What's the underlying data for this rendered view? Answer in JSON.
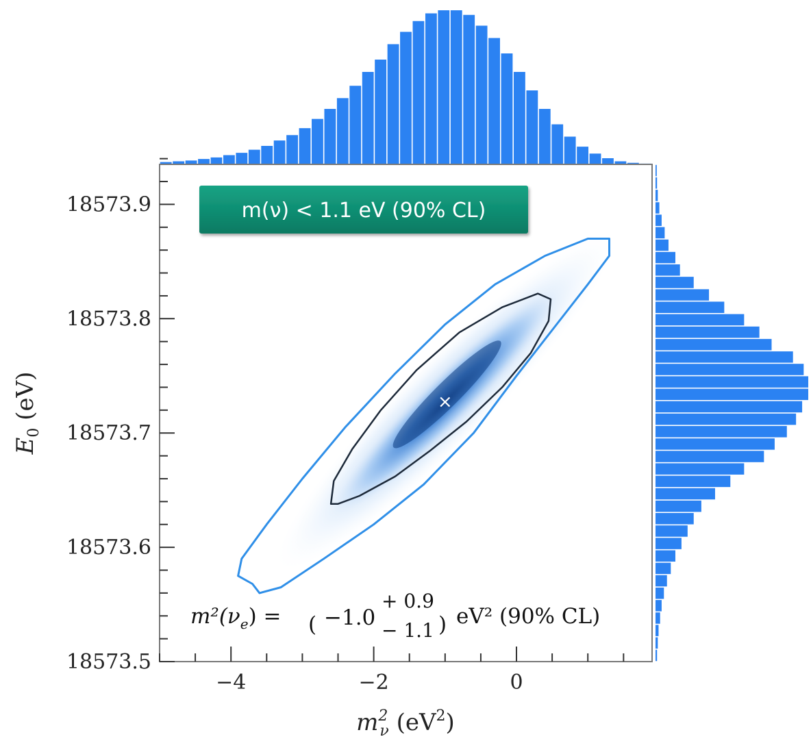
{
  "chart_data": {
    "type": "scatter",
    "subtype": "2d-histogram-with-marginals",
    "title": "",
    "xlabel": "m",
    "xlabel_sup": "2",
    "xlabel_sub": "ν",
    "xlabel_unit_open": " (eV",
    "xlabel_unit_sup": "2",
    "xlabel_unit_close": ")",
    "ylabel": "E",
    "ylabel_sub": "0",
    "ylabel_unit": " (eV)",
    "xlim": [
      -5.0,
      1.9
    ],
    "ylim": [
      18573.5,
      18573.935
    ],
    "x_ticks": [
      -4,
      -2,
      0
    ],
    "x_tick_labels": [
      "−4",
      "−2",
      "0"
    ],
    "x_minor_step": 0.5,
    "y_ticks": [
      18573.5,
      18573.6,
      18573.7,
      18573.8,
      18573.9
    ],
    "y_tick_labels": [
      "18573.5",
      "18573.6",
      "18573.7",
      "18573.8",
      "18573.9"
    ],
    "y_minor_step": 0.02,
    "best_fit": {
      "x": -1.0,
      "y": 18573.727,
      "marker": "×"
    },
    "contours": [
      {
        "name": "inner",
        "color": "#1d2a3a",
        "points": [
          [
            -2.6,
            18573.638
          ],
          [
            -2.56,
            18573.658
          ],
          [
            -2.3,
            18573.686
          ],
          [
            -1.9,
            18573.72
          ],
          [
            -1.4,
            18573.755
          ],
          [
            -0.8,
            18573.788
          ],
          [
            -0.2,
            18573.81
          ],
          [
            0.3,
            18573.822
          ],
          [
            0.48,
            18573.817
          ],
          [
            0.45,
            18573.798
          ],
          [
            0.2,
            18573.77
          ],
          [
            -0.2,
            18573.74
          ],
          [
            -0.7,
            18573.71
          ],
          [
            -1.2,
            18573.685
          ],
          [
            -1.7,
            18573.662
          ],
          [
            -2.2,
            18573.645
          ],
          [
            -2.5,
            18573.638
          ]
        ]
      },
      {
        "name": "outer",
        "color": "#2f8fe8",
        "points": [
          [
            -3.7,
            18573.568
          ],
          [
            -3.9,
            18573.575
          ],
          [
            -3.85,
            18573.59
          ],
          [
            -3.5,
            18573.62
          ],
          [
            -3.0,
            18573.66
          ],
          [
            -2.4,
            18573.705
          ],
          [
            -1.7,
            18573.752
          ],
          [
            -1.0,
            18573.795
          ],
          [
            -0.3,
            18573.83
          ],
          [
            0.4,
            18573.855
          ],
          [
            1.0,
            18573.87
          ],
          [
            1.3,
            18573.87
          ],
          [
            1.3,
            18573.855
          ],
          [
            1.0,
            18573.83
          ],
          [
            0.5,
            18573.79
          ],
          [
            0.0,
            18573.75
          ],
          [
            -0.6,
            18573.7
          ],
          [
            -1.3,
            18573.655
          ],
          [
            -2.0,
            18573.62
          ],
          [
            -2.7,
            18573.59
          ],
          [
            -3.3,
            18573.565
          ],
          [
            -3.6,
            18573.56
          ]
        ]
      }
    ],
    "marginal_x": {
      "color": "#2b82f2",
      "bin_edges": [
        -5.0,
        1.9
      ],
      "values": [
        0.015,
        0.02,
        0.025,
        0.035,
        0.045,
        0.06,
        0.075,
        0.095,
        0.12,
        0.155,
        0.19,
        0.235,
        0.295,
        0.36,
        0.43,
        0.51,
        0.6,
        0.68,
        0.78,
        0.86,
        0.93,
        0.98,
        1.0,
        1.0,
        0.97,
        0.9,
        0.82,
        0.72,
        0.6,
        0.48,
        0.36,
        0.26,
        0.18,
        0.115,
        0.07,
        0.04,
        0.02,
        0.01,
        0.005
      ]
    },
    "marginal_y": {
      "color": "#2b82f2",
      "bin_edges": [
        18573.5,
        18573.935
      ],
      "values": [
        0.01,
        0.015,
        0.02,
        0.03,
        0.04,
        0.055,
        0.075,
        0.1,
        0.13,
        0.17,
        0.21,
        0.25,
        0.3,
        0.39,
        0.49,
        0.58,
        0.71,
        0.78,
        0.86,
        0.92,
        0.96,
        1.0,
        1.0,
        0.97,
        0.9,
        0.76,
        0.68,
        0.58,
        0.45,
        0.35,
        0.25,
        0.16,
        0.13,
        0.085,
        0.06,
        0.04,
        0.025,
        0.015,
        0.01,
        0.008
      ]
    },
    "banner": {
      "text": "m(ν) < 1.1 eV (90% CL)",
      "bg": "#0e8c72"
    },
    "result_annotation": {
      "lhs": "m²(ν",
      "lhs_sub": "e",
      "lhs_close": ") = ",
      "central": "−1.0",
      "upper": "+ 0.9",
      "lower": "− 1.1",
      "rhs": "eV² (90% CL)"
    },
    "grid": false
  }
}
